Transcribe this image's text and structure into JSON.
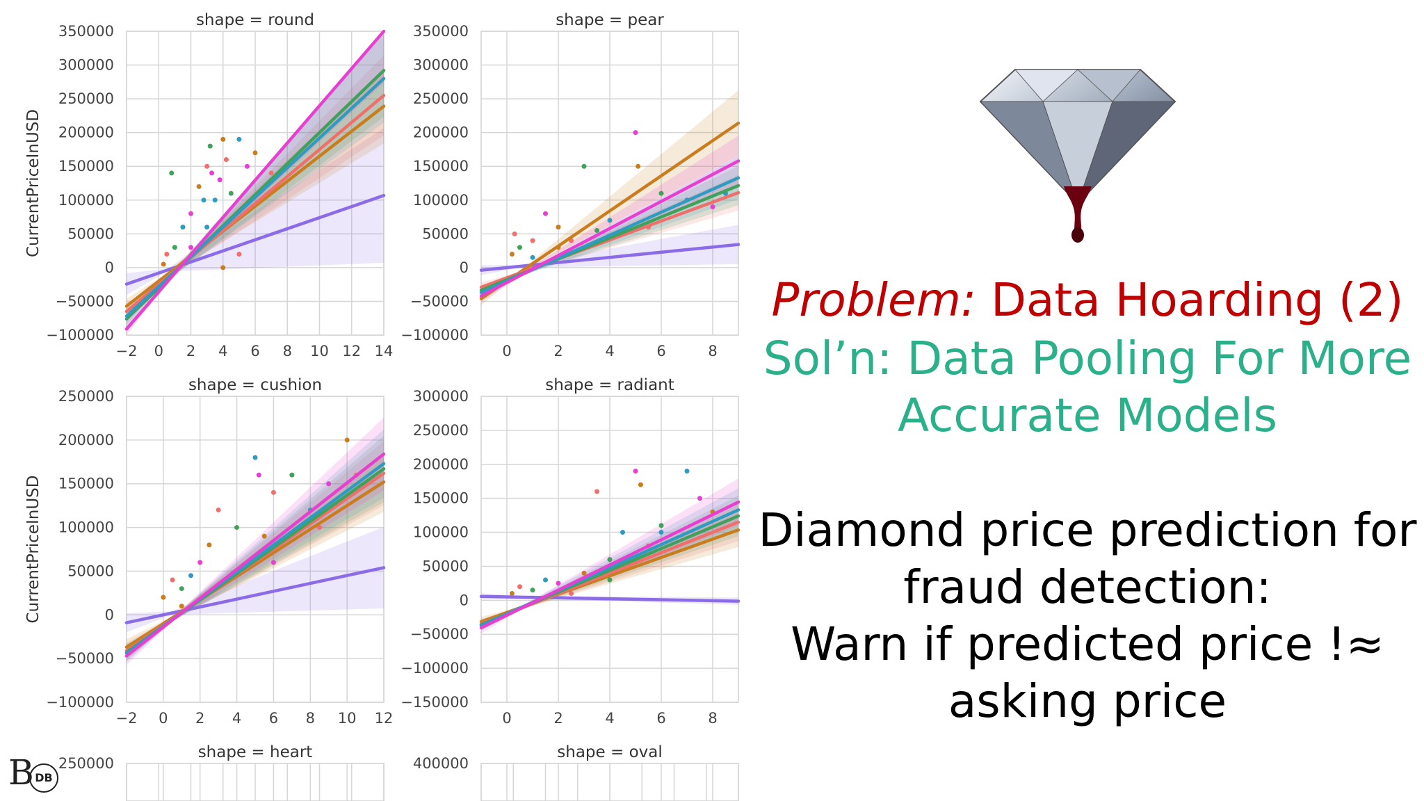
{
  "slide": {
    "problem_prefix": "Problem:",
    "problem_text": " Data Hoarding (2)",
    "solution_line1": "Sol’n: Data Pooling For More",
    "solution_line2": "Accurate Models",
    "desc_line1": "Diamond price prediction for",
    "desc_line2": "fraud detection:",
    "desc_line3": "Warn if predicted price !≈",
    "desc_line4": "asking price",
    "logo_letter": "B",
    "logo_text": "DB"
  },
  "colors": {
    "problem": "#c00000",
    "solution": "#2ab08a",
    "series": [
      "#8c6be8",
      "#c97d1e",
      "#ef6f6c",
      "#3fa15b",
      "#2f9bbf",
      "#e83fd1"
    ]
  },
  "chart_data": [
    {
      "type": "scatter",
      "title": "shape = round",
      "ylabel": "CurrentPriceInUSD",
      "xlim": [
        -2,
        14
      ],
      "ylim": [
        -100000,
        350000
      ],
      "xticks": [
        "−2",
        "0",
        "2",
        "4",
        "6",
        "8",
        "10",
        "12",
        "14"
      ],
      "yticks": [
        "350000",
        "300000",
        "250000",
        "200000",
        "150000",
        "100000",
        "50000",
        "0",
        "−50000",
        "−100000"
      ],
      "fits": [
        {
          "intercept": -8000,
          "slope": 8200
        },
        {
          "intercept": -20000,
          "slope": 18500
        },
        {
          "intercept": -25000,
          "slope": 20000
        },
        {
          "intercept": -30000,
          "slope": 23000
        },
        {
          "intercept": -28000,
          "slope": 22000
        },
        {
          "intercept": -35000,
          "slope": 28000
        }
      ],
      "points": [
        [
          0.3,
          5000
        ],
        [
          0.5,
          20000
        ],
        [
          1,
          30000
        ],
        [
          1.5,
          60000
        ],
        [
          2,
          80000
        ],
        [
          2.5,
          120000
        ],
        [
          3,
          150000
        ],
        [
          3.2,
          180000
        ],
        [
          3.5,
          100000
        ],
        [
          3.8,
          130000
        ],
        [
          4,
          190000
        ],
        [
          4.2,
          160000
        ],
        [
          4.5,
          110000
        ],
        [
          5,
          190000
        ],
        [
          5.5,
          150000
        ],
        [
          6,
          170000
        ],
        [
          7,
          140000
        ],
        [
          8,
          150000
        ],
        [
          3,
          60000
        ],
        [
          2,
          30000
        ],
        [
          4,
          0
        ],
        [
          5,
          20000
        ],
        [
          0.8,
          140000
        ],
        [
          2.8,
          100000
        ],
        [
          3.3,
          140000
        ]
      ]
    },
    {
      "type": "scatter",
      "title": "shape = pear",
      "ylabel": "",
      "xlim": [
        -1,
        9
      ],
      "ylim": [
        -100000,
        350000
      ],
      "xticks": [
        "0",
        "2",
        "4",
        "6",
        "8"
      ],
      "yticks": [
        "350000",
        "300000",
        "250000",
        "200000",
        "150000",
        "100000",
        "50000",
        "0",
        "−50000",
        "−100000"
      ],
      "fits": [
        {
          "intercept": 0,
          "slope": 3800
        },
        {
          "intercept": -20000,
          "slope": 26000
        },
        {
          "intercept": -15000,
          "slope": 14000
        },
        {
          "intercept": -18000,
          "slope": 15500
        },
        {
          "intercept": -20000,
          "slope": 17000
        },
        {
          "intercept": -22000,
          "slope": 20000
        }
      ],
      "points": [
        [
          0.2,
          20000
        ],
        [
          0.3,
          50000
        ],
        [
          0.5,
          30000
        ],
        [
          1,
          15000
        ],
        [
          1.5,
          80000
        ],
        [
          2,
          60000
        ],
        [
          2.5,
          40000
        ],
        [
          3,
          150000
        ],
        [
          4,
          70000
        ],
        [
          5,
          200000
        ],
        [
          5.1,
          150000
        ],
        [
          5.5,
          60000
        ],
        [
          6,
          110000
        ],
        [
          7,
          100000
        ],
        [
          8,
          90000
        ],
        [
          2,
          30000
        ],
        [
          1,
          40000
        ],
        [
          3.5,
          55000
        ],
        [
          8.5,
          110000
        ]
      ]
    },
    {
      "type": "scatter",
      "title": "shape = cushion",
      "ylabel": "CurrentPriceInUSD",
      "xlim": [
        -2,
        12
      ],
      "ylim": [
        -100000,
        250000
      ],
      "xticks": [
        "−2",
        "0",
        "2",
        "4",
        "6",
        "8",
        "10",
        "12"
      ],
      "yticks": [
        "250000",
        "200000",
        "150000",
        "100000",
        "50000",
        "0",
        "−50000",
        "−100000"
      ],
      "fits": [
        {
          "intercept": 0,
          "slope": 4500
        },
        {
          "intercept": -10000,
          "slope": 13500
        },
        {
          "intercept": -12000,
          "slope": 14500
        },
        {
          "intercept": -13000,
          "slope": 15000
        },
        {
          "intercept": -13000,
          "slope": 15500
        },
        {
          "intercept": -14000,
          "slope": 16500
        }
      ],
      "points": [
        [
          0,
          20000
        ],
        [
          0.5,
          40000
        ],
        [
          1,
          30000
        ],
        [
          1.5,
          45000
        ],
        [
          2,
          60000
        ],
        [
          2.5,
          80000
        ],
        [
          3,
          120000
        ],
        [
          4,
          100000
        ],
        [
          5,
          180000
        ],
        [
          5.2,
          160000
        ],
        [
          5.5,
          90000
        ],
        [
          6,
          140000
        ],
        [
          7,
          160000
        ],
        [
          8,
          120000
        ],
        [
          9,
          150000
        ],
        [
          10,
          200000
        ],
        [
          10.5,
          160000
        ],
        [
          11,
          150000
        ],
        [
          4,
          50000
        ],
        [
          6,
          60000
        ],
        [
          1,
          10000
        ],
        [
          8.5,
          100000
        ]
      ]
    },
    {
      "type": "scatter",
      "title": "shape = radiant",
      "ylabel": "",
      "xlim": [
        -1,
        9
      ],
      "ylim": [
        -150000,
        300000
      ],
      "xticks": [
        "0",
        "2",
        "4",
        "6",
        "8"
      ],
      "yticks": [
        "300000",
        "250000",
        "200000",
        "150000",
        "100000",
        "50000",
        "0",
        "−50000",
        "−100000",
        "−150000"
      ],
      "fits": [
        {
          "intercept": 5000,
          "slope": -700
        },
        {
          "intercept": -18000,
          "slope": 13500
        },
        {
          "intercept": -20000,
          "slope": 15000
        },
        {
          "intercept": -20000,
          "slope": 16000
        },
        {
          "intercept": -20000,
          "slope": 17000
        },
        {
          "intercept": -22000,
          "slope": 18500
        }
      ],
      "points": [
        [
          0.2,
          10000
        ],
        [
          0.5,
          20000
        ],
        [
          1,
          15000
        ],
        [
          1.5,
          30000
        ],
        [
          2,
          25000
        ],
        [
          3,
          40000
        ],
        [
          3.5,
          160000
        ],
        [
          4,
          60000
        ],
        [
          4.5,
          100000
        ],
        [
          5,
          190000
        ],
        [
          5.2,
          170000
        ],
        [
          5.5,
          80000
        ],
        [
          6,
          110000
        ],
        [
          7,
          190000
        ],
        [
          7.5,
          150000
        ],
        [
          8,
          130000
        ],
        [
          2.5,
          10000
        ],
        [
          4,
          30000
        ],
        [
          6,
          100000
        ]
      ]
    },
    {
      "type": "scatter",
      "title": "shape = heart",
      "ylabel": "",
      "xlim": [
        -2,
        12
      ],
      "ylim": [
        -100000,
        250000
      ],
      "xticks": [],
      "yticks": [
        "250000"
      ],
      "fits": [],
      "points": []
    },
    {
      "type": "scatter",
      "title": "shape = oval",
      "ylabel": "",
      "xlim": [
        -1,
        9
      ],
      "ylim": [
        -200000,
        400000
      ],
      "xticks": [],
      "yticks": [
        "400000"
      ],
      "fits": [],
      "points": []
    }
  ]
}
